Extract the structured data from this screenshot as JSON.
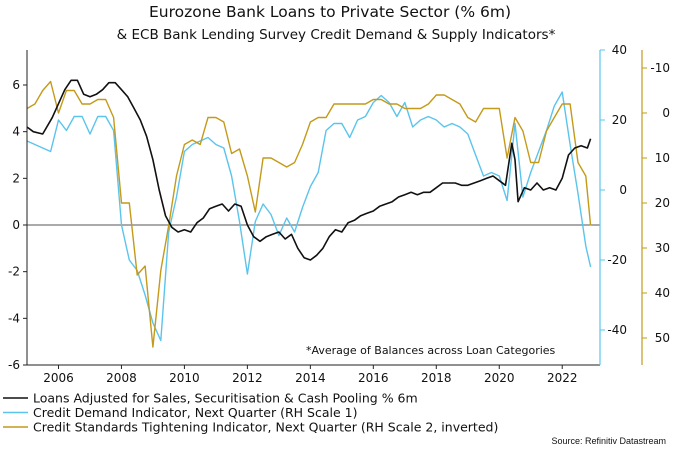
{
  "chart_data": {
    "type": "line",
    "title": "Eurozone Bank Loans to Private Sector (% 6m)",
    "subtitle": "& ECB Bank Lending Survey Credit Demand & Supply Indicators*",
    "annotation": "*Average of Balances across Loan Categories",
    "source": "Source: Refinitiv Datastream",
    "x_ticks": [
      "2006",
      "2008",
      "2010",
      "2012",
      "2014",
      "2016",
      "2018",
      "2020",
      "2022"
    ],
    "x_range": [
      2005.0,
      2023.2
    ],
    "left_axis": {
      "min": -6,
      "max": 7.5,
      "ticks": [
        -6,
        -4,
        -2,
        0,
        2,
        4,
        6
      ],
      "zero_line": 0
    },
    "right_axis_1": {
      "min": -50,
      "max": 40,
      "ticks": [
        -40,
        -20,
        0,
        20,
        40
      ],
      "color": "#5bc4ec"
    },
    "right_axis_2": {
      "min": -14,
      "max": 56,
      "inverted": true,
      "ticks": [
        -10,
        0,
        10,
        20,
        30,
        40,
        50
      ],
      "color": "#c49a1a"
    },
    "colors": {
      "loans": "#111111",
      "demand": "#5bc4ec",
      "standards": "#c49a1a",
      "axis2": "#c49a1a"
    },
    "series": [
      {
        "name": "Loans Adjusted for Sales, Securitisation & Cash Pooling % 6m",
        "axis": "left",
        "points": [
          [
            2005.0,
            4.2
          ],
          [
            2005.2,
            4.0
          ],
          [
            2005.5,
            3.9
          ],
          [
            2005.8,
            4.6
          ],
          [
            2006.0,
            5.2
          ],
          [
            2006.2,
            5.8
          ],
          [
            2006.4,
            6.2
          ],
          [
            2006.6,
            6.2
          ],
          [
            2006.8,
            5.6
          ],
          [
            2007.0,
            5.5
          ],
          [
            2007.2,
            5.6
          ],
          [
            2007.4,
            5.8
          ],
          [
            2007.6,
            6.1
          ],
          [
            2007.8,
            6.1
          ],
          [
            2008.0,
            5.8
          ],
          [
            2008.2,
            5.5
          ],
          [
            2008.4,
            5.0
          ],
          [
            2008.6,
            4.5
          ],
          [
            2008.8,
            3.8
          ],
          [
            2009.0,
            2.8
          ],
          [
            2009.2,
            1.5
          ],
          [
            2009.4,
            0.4
          ],
          [
            2009.6,
            -0.1
          ],
          [
            2009.8,
            -0.3
          ],
          [
            2010.0,
            -0.2
          ],
          [
            2010.2,
            -0.3
          ],
          [
            2010.4,
            0.1
          ],
          [
            2010.6,
            0.3
          ],
          [
            2010.8,
            0.7
          ],
          [
            2011.0,
            0.8
          ],
          [
            2011.2,
            0.9
          ],
          [
            2011.4,
            0.6
          ],
          [
            2011.6,
            0.9
          ],
          [
            2011.8,
            0.8
          ],
          [
            2012.0,
            0.0
          ],
          [
            2012.2,
            -0.5
          ],
          [
            2012.4,
            -0.7
          ],
          [
            2012.6,
            -0.5
          ],
          [
            2012.8,
            -0.4
          ],
          [
            2013.0,
            -0.3
          ],
          [
            2013.2,
            -0.6
          ],
          [
            2013.4,
            -0.4
          ],
          [
            2013.6,
            -1.0
          ],
          [
            2013.8,
            -1.4
          ],
          [
            2014.0,
            -1.5
          ],
          [
            2014.2,
            -1.3
          ],
          [
            2014.4,
            -1.0
          ],
          [
            2014.6,
            -0.5
          ],
          [
            2014.8,
            -0.2
          ],
          [
            2015.0,
            -0.3
          ],
          [
            2015.2,
            0.1
          ],
          [
            2015.4,
            0.2
          ],
          [
            2015.6,
            0.4
          ],
          [
            2015.8,
            0.5
          ],
          [
            2016.0,
            0.6
          ],
          [
            2016.2,
            0.8
          ],
          [
            2016.4,
            0.9
          ],
          [
            2016.6,
            1.0
          ],
          [
            2016.8,
            1.2
          ],
          [
            2017.0,
            1.3
          ],
          [
            2017.2,
            1.4
          ],
          [
            2017.4,
            1.3
          ],
          [
            2017.6,
            1.4
          ],
          [
            2017.8,
            1.4
          ],
          [
            2018.0,
            1.6
          ],
          [
            2018.2,
            1.8
          ],
          [
            2018.4,
            1.8
          ],
          [
            2018.6,
            1.8
          ],
          [
            2018.8,
            1.7
          ],
          [
            2019.0,
            1.7
          ],
          [
            2019.2,
            1.8
          ],
          [
            2019.4,
            1.9
          ],
          [
            2019.6,
            2.0
          ],
          [
            2019.8,
            2.1
          ],
          [
            2020.0,
            1.9
          ],
          [
            2020.2,
            1.7
          ],
          [
            2020.4,
            3.5
          ],
          [
            2020.5,
            2.8
          ],
          [
            2020.6,
            1.0
          ],
          [
            2020.8,
            1.6
          ],
          [
            2021.0,
            1.5
          ],
          [
            2021.2,
            1.8
          ],
          [
            2021.4,
            1.5
          ],
          [
            2021.6,
            1.6
          ],
          [
            2021.8,
            1.5
          ],
          [
            2022.0,
            2.0
          ],
          [
            2022.2,
            3.0
          ],
          [
            2022.4,
            3.3
          ],
          [
            2022.6,
            3.4
          ],
          [
            2022.8,
            3.3
          ],
          [
            2022.9,
            3.7
          ]
        ]
      },
      {
        "name": "Credit Demand Indicator, Next Quarter (RH Scale 1)",
        "axis": "right1",
        "points": [
          [
            2005.0,
            14
          ],
          [
            2005.25,
            13
          ],
          [
            2005.5,
            12
          ],
          [
            2005.75,
            11
          ],
          [
            2006.0,
            20
          ],
          [
            2006.25,
            17
          ],
          [
            2006.5,
            21
          ],
          [
            2006.75,
            21
          ],
          [
            2007.0,
            16
          ],
          [
            2007.25,
            21
          ],
          [
            2007.5,
            21
          ],
          [
            2007.75,
            17
          ],
          [
            2008.0,
            -10
          ],
          [
            2008.25,
            -20
          ],
          [
            2008.5,
            -23
          ],
          [
            2008.75,
            -30
          ],
          [
            2009.0,
            -38
          ],
          [
            2009.25,
            -43
          ],
          [
            2009.5,
            -12
          ],
          [
            2009.75,
            -2
          ],
          [
            2010.0,
            11
          ],
          [
            2010.25,
            13
          ],
          [
            2010.5,
            14
          ],
          [
            2010.75,
            15
          ],
          [
            2011.0,
            13
          ],
          [
            2011.25,
            12
          ],
          [
            2011.5,
            4
          ],
          [
            2011.75,
            -9
          ],
          [
            2012.0,
            -24
          ],
          [
            2012.25,
            -9
          ],
          [
            2012.5,
            -4
          ],
          [
            2012.75,
            -7
          ],
          [
            2013.0,
            -13
          ],
          [
            2013.25,
            -8
          ],
          [
            2013.5,
            -12
          ],
          [
            2013.75,
            -5
          ],
          [
            2014.0,
            1
          ],
          [
            2014.25,
            5
          ],
          [
            2014.5,
            17
          ],
          [
            2014.75,
            19
          ],
          [
            2015.0,
            19
          ],
          [
            2015.25,
            15
          ],
          [
            2015.5,
            20
          ],
          [
            2015.75,
            21
          ],
          [
            2016.0,
            25
          ],
          [
            2016.25,
            27
          ],
          [
            2016.5,
            25
          ],
          [
            2016.75,
            21
          ],
          [
            2017.0,
            25
          ],
          [
            2017.25,
            18
          ],
          [
            2017.5,
            20
          ],
          [
            2017.75,
            21
          ],
          [
            2018.0,
            20
          ],
          [
            2018.25,
            18
          ],
          [
            2018.5,
            19
          ],
          [
            2018.75,
            18
          ],
          [
            2019.0,
            16
          ],
          [
            2019.25,
            10
          ],
          [
            2019.5,
            4
          ],
          [
            2019.75,
            5
          ],
          [
            2020.0,
            4
          ],
          [
            2020.25,
            -3
          ],
          [
            2020.5,
            19
          ],
          [
            2020.75,
            -2
          ],
          [
            2021.0,
            5
          ],
          [
            2021.25,
            11
          ],
          [
            2021.5,
            17
          ],
          [
            2021.75,
            24
          ],
          [
            2022.0,
            28
          ],
          [
            2022.25,
            13
          ],
          [
            2022.5,
            -1
          ],
          [
            2022.75,
            -16
          ],
          [
            2022.9,
            -22
          ]
        ]
      },
      {
        "name": "Credit Standards Tightening Indicator, Next Quarter (RH Scale 2, inverted)",
        "axis": "right2",
        "points": [
          [
            2005.0,
            -1
          ],
          [
            2005.25,
            -2
          ],
          [
            2005.5,
            -5
          ],
          [
            2005.75,
            -7
          ],
          [
            2006.0,
            0
          ],
          [
            2006.25,
            -5
          ],
          [
            2006.5,
            -5
          ],
          [
            2006.75,
            -2
          ],
          [
            2007.0,
            -2
          ],
          [
            2007.25,
            -3
          ],
          [
            2007.5,
            -3
          ],
          [
            2007.75,
            1
          ],
          [
            2008.0,
            20
          ],
          [
            2008.25,
            20
          ],
          [
            2008.5,
            36
          ],
          [
            2008.75,
            34
          ],
          [
            2009.0,
            52
          ],
          [
            2009.25,
            35
          ],
          [
            2009.5,
            25
          ],
          [
            2009.75,
            14
          ],
          [
            2010.0,
            7
          ],
          [
            2010.25,
            6
          ],
          [
            2010.5,
            7
          ],
          [
            2010.75,
            1
          ],
          [
            2011.0,
            1
          ],
          [
            2011.25,
            2
          ],
          [
            2011.5,
            9
          ],
          [
            2011.75,
            8
          ],
          [
            2012.0,
            14
          ],
          [
            2012.25,
            22
          ],
          [
            2012.5,
            10
          ],
          [
            2012.75,
            10
          ],
          [
            2013.0,
            11
          ],
          [
            2013.25,
            12
          ],
          [
            2013.5,
            11
          ],
          [
            2013.75,
            7
          ],
          [
            2014.0,
            2
          ],
          [
            2014.25,
            1
          ],
          [
            2014.5,
            1
          ],
          [
            2014.75,
            -2
          ],
          [
            2015.0,
            -2
          ],
          [
            2015.25,
            -2
          ],
          [
            2015.5,
            -2
          ],
          [
            2015.75,
            -2
          ],
          [
            2016.0,
            -3
          ],
          [
            2016.25,
            -3
          ],
          [
            2016.5,
            -2
          ],
          [
            2016.75,
            -2
          ],
          [
            2017.0,
            -1
          ],
          [
            2017.25,
            -1
          ],
          [
            2017.5,
            -1
          ],
          [
            2017.75,
            -2
          ],
          [
            2018.0,
            -4
          ],
          [
            2018.25,
            -4
          ],
          [
            2018.5,
            -3
          ],
          [
            2018.75,
            -2
          ],
          [
            2019.0,
            1
          ],
          [
            2019.25,
            2
          ],
          [
            2019.5,
            -1
          ],
          [
            2019.75,
            -1
          ],
          [
            2020.0,
            -1
          ],
          [
            2020.25,
            10
          ],
          [
            2020.5,
            1
          ],
          [
            2020.75,
            4
          ],
          [
            2021.0,
            11
          ],
          [
            2021.25,
            11
          ],
          [
            2021.5,
            4
          ],
          [
            2021.75,
            1
          ],
          [
            2022.0,
            -2
          ],
          [
            2022.25,
            -2
          ],
          [
            2022.5,
            11
          ],
          [
            2022.75,
            14
          ],
          [
            2022.9,
            25
          ]
        ]
      }
    ]
  }
}
